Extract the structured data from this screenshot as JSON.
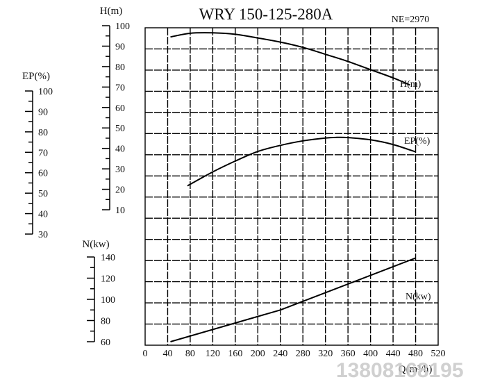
{
  "chart_data": {
    "type": "line",
    "title": "WRY 150-125-280A",
    "speed_label": "NE=2970",
    "xlabel": "Q(m³/h)",
    "xticks": [
      "0",
      "40",
      "80",
      "120",
      "160",
      "200",
      "240",
      "280",
      "320",
      "360",
      "400",
      "440",
      "480",
      "520"
    ],
    "xlim": [
      0,
      520
    ],
    "axes": [
      {
        "key": "H",
        "label": "H(m)",
        "ticks": [
          "100",
          "90",
          "80",
          "70",
          "60",
          "50",
          "40",
          "30",
          "20",
          "10"
        ],
        "range": [
          10,
          100
        ]
      },
      {
        "key": "EP",
        "label": "EP(%)",
        "ticks": [
          "100",
          "90",
          "80",
          "70",
          "60",
          "50",
          "40",
          "30"
        ],
        "range": [
          30,
          100
        ]
      },
      {
        "key": "N",
        "label": "N(kw)",
        "ticks": [
          "140",
          "120",
          "100",
          "80",
          "60"
        ],
        "range": [
          60,
          140
        ]
      }
    ],
    "series": [
      {
        "name": "H(m)",
        "axis": "H",
        "x": [
          45,
          80,
          120,
          160,
          200,
          240,
          280,
          320,
          360,
          400,
          440,
          470
        ],
        "y": [
          94.5,
          96.3,
          96.5,
          95.8,
          94.0,
          92.0,
          89.4,
          86.0,
          82.5,
          78.5,
          74.5,
          71.0
        ]
      },
      {
        "name": "EP(%)",
        "axis": "EP",
        "x": [
          75,
          120,
          160,
          200,
          240,
          280,
          320,
          340,
          360,
          400,
          440,
          480
        ],
        "y": [
          53.6,
          60.4,
          65.7,
          70.4,
          73.4,
          75.6,
          77.0,
          77.3,
          77.2,
          76.1,
          73.8,
          70.2
        ]
      },
      {
        "name": "N(kw)",
        "axis": "N",
        "x": [
          45,
          240,
          240,
          480
        ],
        "y": [
          60,
          90,
          90,
          139
        ]
      }
    ],
    "grid": true
  },
  "watermark": "13808168195"
}
